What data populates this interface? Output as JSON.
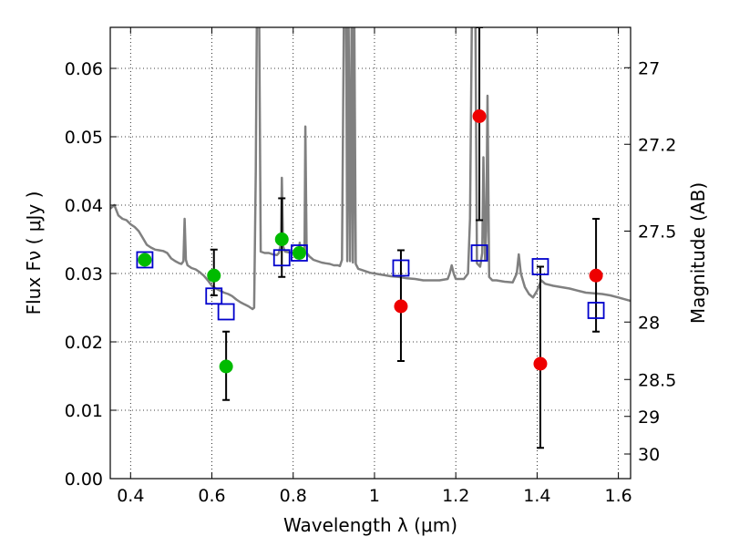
{
  "chart_data": {
    "type": "scatter",
    "xlabel": "Wavelength  λ (μm)",
    "ylabel": "Flux  Fν  ( μJy )",
    "ylabel_right": "Magnitude (AB)",
    "xlim": [
      0.35,
      1.63
    ],
    "ylim": [
      0.0,
      0.066
    ],
    "x_ticks": [
      {
        "value": 0.4,
        "label": "0.4"
      },
      {
        "value": 0.6,
        "label": "0.6"
      },
      {
        "value": 0.8,
        "label": "0.8"
      },
      {
        "value": 1.0,
        "label": "1"
      },
      {
        "value": 1.2,
        "label": "1.2"
      },
      {
        "value": 1.4,
        "label": "1.4"
      },
      {
        "value": 1.6,
        "label": "1.6"
      }
    ],
    "y_ticks": [
      {
        "value": 0.0,
        "label": "0.00"
      },
      {
        "value": 0.01,
        "label": "0.01"
      },
      {
        "value": 0.02,
        "label": "0.02"
      },
      {
        "value": 0.03,
        "label": "0.03"
      },
      {
        "value": 0.04,
        "label": "0.04"
      },
      {
        "value": 0.05,
        "label": "0.05"
      },
      {
        "value": 0.06,
        "label": "0.06"
      }
    ],
    "right_ticks": [
      {
        "flux": 0.0601,
        "label": "27"
      },
      {
        "flux": 0.0489,
        "label": "27.2"
      },
      {
        "flux": 0.0362,
        "label": "27.5"
      },
      {
        "flux": 0.0229,
        "label": "28"
      },
      {
        "flux": 0.0145,
        "label": "28.5"
      },
      {
        "flux": 0.0091,
        "label": "29"
      },
      {
        "flux": 0.0036,
        "label": "30"
      }
    ],
    "grid": true,
    "grid_style": "dotted",
    "template_spectrum": {
      "color": "#808080",
      "points": [
        [
          0.35,
          0.0395
        ],
        [
          0.36,
          0.04
        ],
        [
          0.37,
          0.0385
        ],
        [
          0.38,
          0.038
        ],
        [
          0.39,
          0.0378
        ],
        [
          0.4,
          0.0372
        ],
        [
          0.41,
          0.0368
        ],
        [
          0.42,
          0.0362
        ],
        [
          0.43,
          0.0352
        ],
        [
          0.44,
          0.0342
        ],
        [
          0.45,
          0.0338
        ],
        [
          0.46,
          0.0335
        ],
        [
          0.47,
          0.0334
        ],
        [
          0.48,
          0.0333
        ],
        [
          0.49,
          0.033
        ],
        [
          0.5,
          0.0322
        ],
        [
          0.51,
          0.0318
        ],
        [
          0.52,
          0.0315
        ],
        [
          0.525,
          0.0314
        ],
        [
          0.53,
          0.0318
        ],
        [
          0.533,
          0.038
        ],
        [
          0.536,
          0.032
        ],
        [
          0.54,
          0.0312
        ],
        [
          0.55,
          0.0308
        ],
        [
          0.56,
          0.0306
        ],
        [
          0.57,
          0.0302
        ],
        [
          0.58,
          0.0297
        ],
        [
          0.59,
          0.029
        ],
        [
          0.6,
          0.0282
        ],
        [
          0.61,
          0.0278
        ],
        [
          0.62,
          0.0275
        ],
        [
          0.63,
          0.0272
        ],
        [
          0.64,
          0.027
        ],
        [
          0.65,
          0.0267
        ],
        [
          0.66,
          0.0262
        ],
        [
          0.67,
          0.0258
        ],
        [
          0.68,
          0.0255
        ],
        [
          0.69,
          0.0252
        ],
        [
          0.7,
          0.0248
        ],
        [
          0.704,
          0.025
        ],
        [
          0.708,
          0.045
        ],
        [
          0.711,
          0.07
        ],
        [
          0.716,
          0.07
        ],
        [
          0.72,
          0.0332
        ],
        [
          0.73,
          0.033
        ],
        [
          0.74,
          0.033
        ],
        [
          0.75,
          0.0328
        ],
        [
          0.76,
          0.0327
        ],
        [
          0.765,
          0.033
        ],
        [
          0.77,
          0.0345
        ],
        [
          0.772,
          0.044
        ],
        [
          0.775,
          0.034
        ],
        [
          0.78,
          0.0332
        ],
        [
          0.79,
          0.0331
        ],
        [
          0.8,
          0.033
        ],
        [
          0.81,
          0.0329
        ],
        [
          0.814,
          0.0332
        ],
        [
          0.816,
          0.0345
        ],
        [
          0.818,
          0.033
        ],
        [
          0.825,
          0.0328
        ],
        [
          0.828,
          0.0335
        ],
        [
          0.83,
          0.0515
        ],
        [
          0.833,
          0.033
        ],
        [
          0.84,
          0.0325
        ],
        [
          0.85,
          0.032
        ],
        [
          0.86,
          0.0318
        ],
        [
          0.87,
          0.0316
        ],
        [
          0.88,
          0.0315
        ],
        [
          0.89,
          0.0314
        ],
        [
          0.9,
          0.0312
        ],
        [
          0.91,
          0.0312
        ],
        [
          0.915,
          0.0311
        ],
        [
          0.92,
          0.032
        ],
        [
          0.925,
          0.07
        ],
        [
          0.93,
          0.07
        ],
        [
          0.933,
          0.0318
        ],
        [
          0.936,
          0.07
        ],
        [
          0.94,
          0.0318
        ],
        [
          0.944,
          0.07
        ],
        [
          0.947,
          0.0316
        ],
        [
          0.95,
          0.07
        ],
        [
          0.954,
          0.0314
        ],
        [
          0.96,
          0.0307
        ],
        [
          0.97,
          0.0305
        ],
        [
          0.98,
          0.0303
        ],
        [
          0.99,
          0.0301
        ],
        [
          1.0,
          0.03
        ],
        [
          1.02,
          0.0298
        ],
        [
          1.04,
          0.0296
        ],
        [
          1.06,
          0.0295
        ],
        [
          1.08,
          0.0293
        ],
        [
          1.1,
          0.0292
        ],
        [
          1.12,
          0.029
        ],
        [
          1.14,
          0.029
        ],
        [
          1.16,
          0.029
        ],
        [
          1.18,
          0.0292
        ],
        [
          1.185,
          0.03
        ],
        [
          1.19,
          0.0312
        ],
        [
          1.195,
          0.03
        ],
        [
          1.2,
          0.0292
        ],
        [
          1.21,
          0.0292
        ],
        [
          1.22,
          0.0292
        ],
        [
          1.23,
          0.03
        ],
        [
          1.235,
          0.038
        ],
        [
          1.24,
          0.07
        ],
        [
          1.248,
          0.07
        ],
        [
          1.252,
          0.0315
        ],
        [
          1.26,
          0.031
        ],
        [
          1.265,
          0.033
        ],
        [
          1.268,
          0.047
        ],
        [
          1.272,
          0.032
        ],
        [
          1.275,
          0.0362
        ],
        [
          1.278,
          0.056
        ],
        [
          1.282,
          0.0295
        ],
        [
          1.29,
          0.029
        ],
        [
          1.3,
          0.029
        ],
        [
          1.32,
          0.0288
        ],
        [
          1.34,
          0.0287
        ],
        [
          1.35,
          0.03
        ],
        [
          1.355,
          0.0328
        ],
        [
          1.36,
          0.03
        ],
        [
          1.37,
          0.028
        ],
        [
          1.38,
          0.027
        ],
        [
          1.39,
          0.0265
        ],
        [
          1.4,
          0.0275
        ],
        [
          1.41,
          0.029
        ],
        [
          1.42,
          0.0285
        ],
        [
          1.44,
          0.0282
        ],
        [
          1.46,
          0.028
        ],
        [
          1.48,
          0.0278
        ],
        [
          1.5,
          0.0275
        ],
        [
          1.52,
          0.0272
        ],
        [
          1.54,
          0.0271
        ],
        [
          1.56,
          0.027
        ],
        [
          1.58,
          0.0268
        ],
        [
          1.6,
          0.0265
        ],
        [
          1.63,
          0.026
        ]
      ]
    },
    "green_points": {
      "color": "#00bb00",
      "points": [
        {
          "x": 0.435,
          "y": 0.032,
          "err": null
        },
        {
          "x": 0.605,
          "y": 0.0297,
          "err": [
            0.0268,
            0.0335
          ]
        },
        {
          "x": 0.635,
          "y": 0.0164,
          "err": [
            0.0115,
            0.0215
          ]
        },
        {
          "x": 0.772,
          "y": 0.035,
          "err": [
            0.0295,
            0.041
          ]
        },
        {
          "x": 0.815,
          "y": 0.033,
          "err": null
        }
      ]
    },
    "red_points": {
      "color": "#ee0000",
      "points": [
        {
          "x": 1.065,
          "y": 0.0252,
          "err": [
            0.0172,
            0.0334
          ]
        },
        {
          "x": 1.258,
          "y": 0.053,
          "err": [
            0.0378,
            0.066
          ]
        },
        {
          "x": 1.408,
          "y": 0.0168,
          "err": [
            0.0045,
            0.031
          ]
        },
        {
          "x": 1.545,
          "y": 0.0297,
          "err": [
            0.0215,
            0.038
          ]
        }
      ]
    },
    "model_squares": {
      "color": "#0000cc",
      "points": [
        {
          "x": 0.435,
          "y": 0.032
        },
        {
          "x": 0.605,
          "y": 0.0267
        },
        {
          "x": 0.635,
          "y": 0.0244
        },
        {
          "x": 0.772,
          "y": 0.0323
        },
        {
          "x": 0.815,
          "y": 0.033
        },
        {
          "x": 1.065,
          "y": 0.0308
        },
        {
          "x": 1.258,
          "y": 0.033
        },
        {
          "x": 1.408,
          "y": 0.031
        },
        {
          "x": 1.545,
          "y": 0.0246
        }
      ]
    }
  }
}
